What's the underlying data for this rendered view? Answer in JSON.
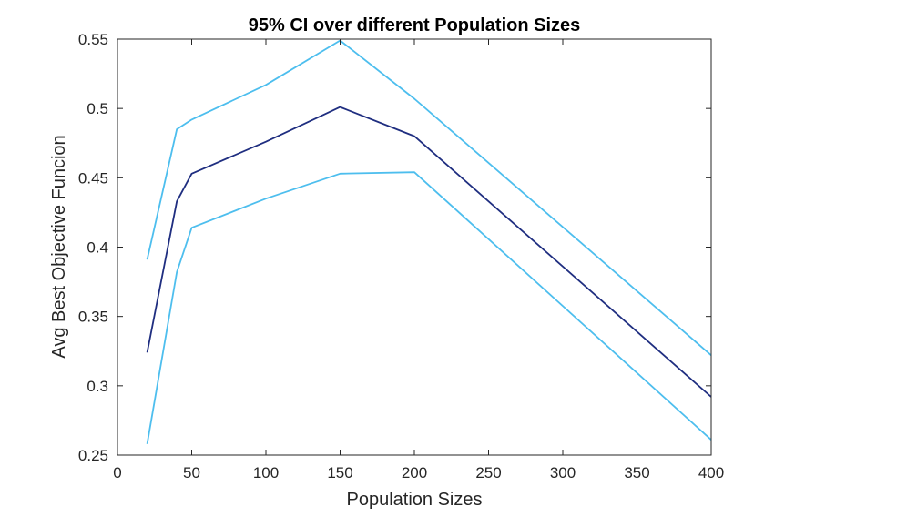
{
  "chart_data": {
    "type": "line",
    "title": "95% CI over different Population Sizes",
    "xlabel": "Population Sizes",
    "ylabel": "Avg Best Objective Funcion",
    "xlim": [
      0,
      400
    ],
    "ylim": [
      0.25,
      0.55
    ],
    "xticks": [
      0,
      50,
      100,
      150,
      200,
      250,
      300,
      350,
      400
    ],
    "yticks": [
      0.25,
      0.3,
      0.35,
      0.4,
      0.45,
      0.5,
      0.55
    ],
    "xtick_labels": [
      "0",
      "50",
      "100",
      "150",
      "200",
      "250",
      "300",
      "350",
      "400"
    ],
    "ytick_labels": [
      "0.25",
      "0.3",
      "0.35",
      "0.4",
      "0.45",
      "0.5",
      "0.55"
    ],
    "grid": false,
    "x": [
      20,
      40,
      50,
      100,
      150,
      200,
      400
    ],
    "series": [
      {
        "values": [
          0.391,
          0.485,
          0.492,
          0.517,
          0.549,
          0.507,
          0.322
        ],
        "color": "#4DBEEE"
      },
      {
        "values": [
          0.324,
          0.433,
          0.453,
          0.476,
          0.501,
          0.48,
          0.292
        ],
        "color": "#1F2E80"
      },
      {
        "values": [
          0.258,
          0.382,
          0.414,
          0.435,
          0.453,
          0.454,
          0.261
        ],
        "color": "#4DBEEE"
      }
    ]
  }
}
